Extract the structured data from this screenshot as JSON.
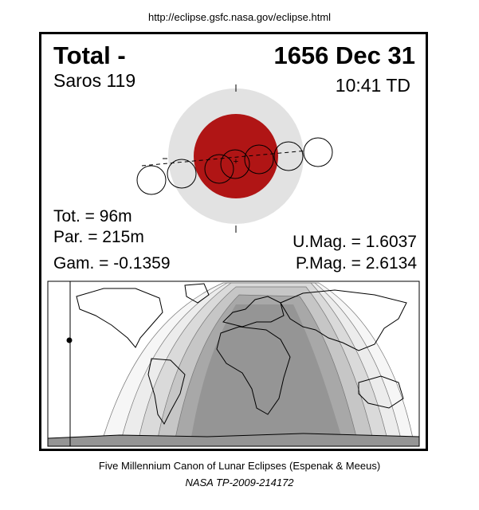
{
  "header": {
    "url": "http://eclipse.gsfc.nasa.gov/eclipse.html"
  },
  "eclipse": {
    "type_label": "Total  -",
    "date": "1656 Dec 31",
    "saros": "Saros 119",
    "time": "10:41 TD",
    "totality": "Tot. =  96m",
    "partial": "Par. = 215m",
    "gamma": "Gam. = -0.1359",
    "umbral_magnitude": "U.Mag. = 1.6037",
    "penumbral_magnitude": "P.Mag. = 2.6134"
  },
  "colors": {
    "umbra": "#b01515",
    "penumbra": "#e2e2e2",
    "map_dark": "#959595",
    "map_shades": [
      "#a8a8a8",
      "#c6c6c6",
      "#dadada",
      "#ececec",
      "#f6f6f6"
    ]
  },
  "footer": {
    "line1": "Five Millennium Canon of Lunar Eclipses (Espenak & Meeus)",
    "line2": "NASA TP-2009-214172"
  }
}
